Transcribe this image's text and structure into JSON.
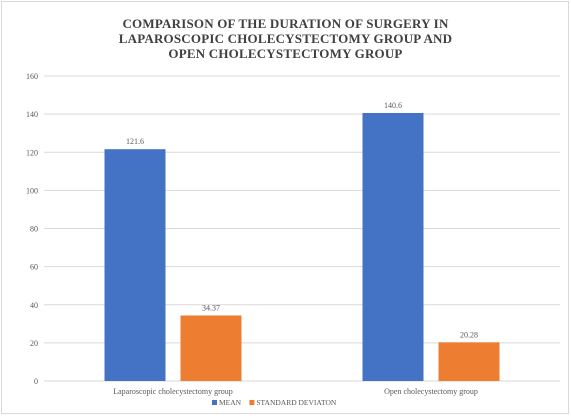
{
  "chart_data": {
    "type": "bar",
    "title_lines": [
      "COMPARISON OF THE  DURATION OF SURGERY IN",
      "LAPAROSCOPIC CHOLECYSTECTOMY GROUP AND",
      "OPEN CHOLECYSTECTOMY GROUP"
    ],
    "categories": [
      "Laparoscopic cholecystectomy group",
      "Open cholecystectomy group"
    ],
    "series": [
      {
        "name": "MEAN",
        "values": [
          121.6,
          140.6
        ],
        "labels": [
          "121.6",
          "140.6"
        ],
        "color": "#4472c4"
      },
      {
        "name": "STANDARD DEVIATON",
        "values": [
          34.37,
          20.28
        ],
        "labels": [
          "34.37",
          "20.28"
        ],
        "color": "#ed7d31"
      }
    ],
    "ylim": [
      0,
      160
    ],
    "yticks": [
      0,
      20,
      40,
      60,
      80,
      100,
      120,
      140,
      160
    ],
    "grid": true,
    "legend_position": "bottom",
    "gridline_color": "#d9d9d9",
    "axis_text_color": "#595959"
  }
}
